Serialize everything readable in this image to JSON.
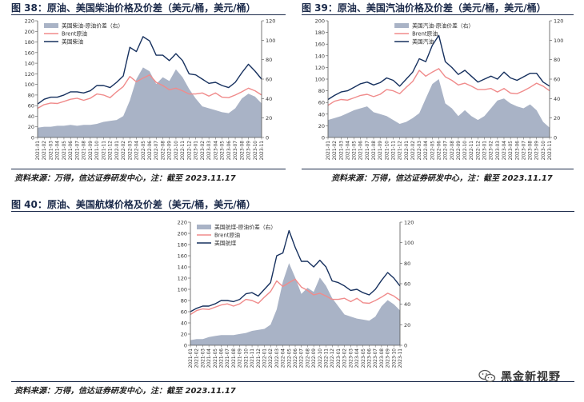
{
  "figures": [
    {
      "title": "图 38：原油、美国柴油价格及价差（美元/桶，美元/桶）",
      "source": "资料来源：万得，信达证券研发中心，注：截至 2023.11.17"
    },
    {
      "title": "图 39：原油、美国汽油价格及价差（美元/桶，美元/桶）",
      "source": "资料来源：万得，信达证券研发中心，注：截至 2023.11.17"
    },
    {
      "title": "图 40：原油、美国航煤价格及价差（美元/桶，美元/桶）",
      "source": "资料来源：万得，信达证券研发中心，注：截至 2023.11.17"
    }
  ],
  "watermark": {
    "text": "黑金新视野",
    "icon": "wechat-icon"
  },
  "colors": {
    "spread": "#a9b3c6",
    "brent": "#f08b8b",
    "product": "#16305e",
    "axis": "#555555"
  },
  "chart_data": [
    {
      "type": "area",
      "legend": [
        "美国柴油-原油价差（右）",
        "Brent原油",
        "美国柴油"
      ],
      "legend_position": "top-left",
      "grid": false,
      "yleft": {
        "min": 0,
        "max": 220,
        "step": 20
      },
      "yright": {
        "min": 0,
        "max": 120,
        "step": 20
      },
      "x_ticks": [
        "2021-01",
        "2021-02",
        "2021-03",
        "2021-04",
        "2021-05",
        "2021-06",
        "2021-07",
        "2021-08",
        "2021-09",
        "2021-10",
        "2021-11",
        "2021-12",
        "2022-01",
        "2022-02",
        "2022-03",
        "2022-04",
        "2022-05",
        "2022-06",
        "2022-07",
        "2022-08",
        "2022-09",
        "2022-10",
        "2022-11",
        "2022-12",
        "2023-01",
        "2023-02",
        "2023-03",
        "2023-04",
        "2023-05",
        "2023-06",
        "2023-07",
        "2023-08",
        "2023-09",
        "2023-10",
        "2023-11"
      ],
      "series": [
        {
          "name": "美国柴油-原油价差（右）",
          "axis": "right",
          "values": [
            10,
            11,
            11,
            12,
            12,
            13,
            12,
            13,
            13,
            14,
            16,
            17,
            18,
            22,
            38,
            60,
            72,
            68,
            55,
            62,
            58,
            70,
            62,
            50,
            40,
            32,
            30,
            28,
            26,
            25,
            30,
            40,
            45,
            42,
            35
          ]
        },
        {
          "name": "Brent原油",
          "axis": "left",
          "values": [
            55,
            62,
            65,
            64,
            68,
            72,
            74,
            70,
            74,
            82,
            80,
            75,
            86,
            96,
            115,
            105,
            112,
            118,
            104,
            98,
            90,
            93,
            88,
            82,
            82,
            84,
            78,
            84,
            76,
            75,
            80,
            86,
            93,
            88,
            80
          ]
        },
        {
          "name": "美国柴油",
          "axis": "left",
          "values": [
            63,
            72,
            76,
            76,
            80,
            86,
            86,
            84,
            88,
            98,
            98,
            94,
            104,
            116,
            170,
            162,
            190,
            182,
            155,
            155,
            145,
            158,
            145,
            120,
            118,
            110,
            102,
            104,
            98,
            94,
            104,
            122,
            138,
            125,
            110
          ]
        }
      ]
    },
    {
      "type": "area",
      "legend": [
        "美国汽油-原油价差（右）",
        "Brent原油",
        "美国汽油"
      ],
      "legend_position": "top-center",
      "grid": false,
      "yleft": {
        "min": 0,
        "max": 200,
        "step": 20
      },
      "yright": {
        "min": 0,
        "max": 120,
        "step": 20
      },
      "x_ticks": [
        "2021-01",
        "2021-02",
        "2021-03",
        "2021-04",
        "2021-05",
        "2021-06",
        "2021-07",
        "2021-08",
        "2021-09",
        "2021-10",
        "2021-11",
        "2021-12",
        "2022-01",
        "2022-02",
        "2022-03",
        "2022-04",
        "2022-05",
        "2022-06",
        "2022-07",
        "2022-08",
        "2022-09",
        "2022-10",
        "2022-11",
        "2022-12",
        "2023-01",
        "2023-02",
        "2023-03",
        "2023-04",
        "2023-05",
        "2023-06",
        "2023-07",
        "2023-08",
        "2023-09",
        "2023-10",
        "2023-11"
      ],
      "series": [
        {
          "name": "美国汽油-原油价差（右）",
          "axis": "right",
          "values": [
            18,
            20,
            22,
            25,
            28,
            30,
            32,
            26,
            24,
            22,
            18,
            14,
            16,
            20,
            25,
            40,
            55,
            60,
            35,
            30,
            22,
            28,
            22,
            18,
            22,
            30,
            38,
            40,
            35,
            32,
            30,
            34,
            28,
            16,
            10
          ]
        },
        {
          "name": "Brent原油",
          "axis": "left",
          "values": [
            55,
            62,
            65,
            64,
            68,
            72,
            74,
            70,
            74,
            82,
            80,
            75,
            86,
            96,
            115,
            105,
            112,
            118,
            104,
            98,
            90,
            93,
            88,
            82,
            82,
            84,
            78,
            84,
            76,
            75,
            80,
            86,
            93,
            88,
            80
          ]
        },
        {
          "name": "美国汽油",
          "axis": "left",
          "values": [
            65,
            72,
            78,
            80,
            86,
            92,
            95,
            90,
            94,
            102,
            98,
            88,
            100,
            112,
            135,
            130,
            158,
            175,
            130,
            120,
            108,
            115,
            105,
            95,
            100,
            105,
            100,
            112,
            102,
            98,
            104,
            110,
            110,
            95,
            88
          ]
        }
      ]
    },
    {
      "type": "area",
      "legend": [
        "美国航煤-原油价差（右）",
        "Brent原油",
        "美国航煤"
      ],
      "legend_position": "top-left",
      "grid": false,
      "yleft": {
        "min": 0,
        "max": 220,
        "step": 20
      },
      "yright": {
        "min": 0,
        "max": 120,
        "step": 20
      },
      "x_ticks": [
        "2021-01",
        "2021-02",
        "2021-03",
        "2021-04",
        "2021-05",
        "2021-06",
        "2021-07",
        "2021-08",
        "2021-09",
        "2021-10",
        "2021-11",
        "2021-12",
        "2022-01",
        "2022-02",
        "2022-03",
        "2022-04",
        "2022-05",
        "2022-06",
        "2022-07",
        "2022-08",
        "2022-09",
        "2022-10",
        "2022-11",
        "2022-12",
        "2023-01",
        "2023-02",
        "2023-03",
        "2023-04",
        "2023-05",
        "2023-06",
        "2023-07",
        "2023-08",
        "2023-09",
        "2023-10",
        "2023-11"
      ],
      "series": [
        {
          "name": "美国航煤-原油价差（右）",
          "axis": "right",
          "values": [
            5,
            6,
            6,
            8,
            9,
            10,
            10,
            10,
            11,
            12,
            14,
            15,
            16,
            20,
            35,
            62,
            80,
            66,
            50,
            56,
            52,
            66,
            58,
            46,
            38,
            30,
            28,
            26,
            25,
            24,
            28,
            38,
            44,
            40,
            34
          ]
        },
        {
          "name": "Brent原油",
          "axis": "left",
          "values": [
            55,
            62,
            65,
            64,
            68,
            72,
            74,
            70,
            74,
            82,
            80,
            75,
            86,
            96,
            115,
            105,
            112,
            118,
            104,
            98,
            90,
            93,
            88,
            82,
            82,
            84,
            78,
            84,
            76,
            75,
            80,
            86,
            93,
            88,
            80
          ]
        },
        {
          "name": "美国航煤",
          "axis": "left",
          "values": [
            60,
            66,
            70,
            70,
            74,
            80,
            80,
            78,
            82,
            92,
            94,
            88,
            100,
            112,
            160,
            165,
            205,
            175,
            150,
            150,
            140,
            152,
            140,
            115,
            112,
            106,
            98,
            100,
            94,
            90,
            100,
            116,
            130,
            120,
            106
          ]
        }
      ]
    }
  ]
}
